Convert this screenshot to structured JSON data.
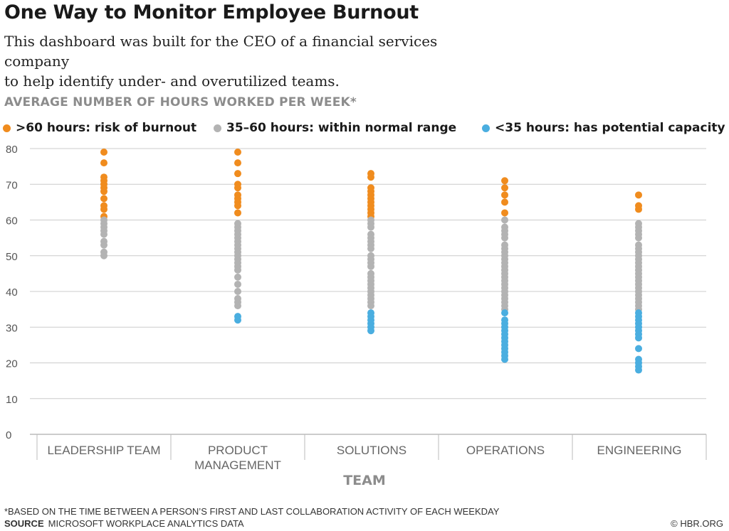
{
  "header": {
    "title": "One Way to Monitor Employee Burnout",
    "subtitle_line1": "This dashboard was built for the CEO of a financial services company",
    "subtitle_line2": "to help identify under- and overutilized teams."
  },
  "footer": {
    "footnote": "*BASED ON THE TIME BETWEEN A PERSON’S FIRST AND LAST COLLABORATION ACTIVITY OF EACH WEEKDAY",
    "source_label": "SOURCE",
    "source_text": "MICROSOFT WORKPLACE ANALYTICS DATA",
    "credit": "© HBR.ORG"
  },
  "colors": {
    "over": "#f08c1e",
    "normal": "#b3b3b3",
    "under": "#4aaee0",
    "grid": "#cccccc"
  },
  "chart_data": {
    "type": "scatter",
    "title": "",
    "ylabel": "AVERAGE NUMBER OF HOURS WORKED PER WEEK*",
    "xlabel": "TEAM",
    "ylim": [
      0,
      80
    ],
    "yticks": [
      0,
      10,
      20,
      30,
      40,
      50,
      60,
      70,
      80
    ],
    "grid": true,
    "legend_position": "top",
    "legend": [
      {
        "key": "over",
        "label": ">60 hours: risk of burnout"
      },
      {
        "key": "normal",
        "label": "35–60 hours: within normal range"
      },
      {
        "key": "under",
        "label": "<35 hours: has potential capacity"
      }
    ],
    "categories": [
      {
        "name": "LEADERSHIP TEAM",
        "lines": [
          "LEADERSHIP TEAM"
        ],
        "values": [
          79,
          76,
          72,
          71,
          70,
          69,
          68,
          66,
          64,
          63,
          61,
          60,
          59,
          58,
          57,
          56,
          54,
          53,
          51,
          50
        ]
      },
      {
        "name": "PRODUCT MANAGEMENT",
        "lines": [
          "PRODUCT",
          "MANAGEMENT"
        ],
        "values": [
          79,
          76,
          73,
          70,
          69,
          67,
          66,
          65,
          64,
          62,
          59,
          58,
          57,
          56,
          55,
          54,
          53,
          52,
          51,
          50,
          49,
          48,
          47,
          46,
          44,
          42,
          40,
          38,
          37,
          36,
          33,
          32
        ]
      },
      {
        "name": "SOLUTIONS",
        "lines": [
          "SOLUTIONS"
        ],
        "values": [
          73,
          72,
          69,
          68,
          67,
          66,
          65,
          64,
          63,
          62,
          61,
          60,
          59,
          58,
          56,
          55,
          54,
          53,
          52,
          50,
          49,
          48,
          47,
          45,
          44,
          43,
          42,
          41,
          40,
          39,
          38,
          37,
          36,
          34,
          33,
          32,
          31,
          30,
          29
        ]
      },
      {
        "name": "OPERATIONS",
        "lines": [
          "OPERATIONS"
        ],
        "values": [
          71,
          69,
          67,
          65,
          62,
          60,
          58,
          57,
          56,
          55,
          53,
          52,
          51,
          50,
          49,
          48,
          47,
          46,
          45,
          44,
          43,
          42,
          41,
          40,
          39,
          38,
          37,
          36,
          35,
          34,
          32,
          31,
          30,
          29,
          28,
          27,
          26,
          25,
          24,
          23,
          22,
          21
        ]
      },
      {
        "name": "ENGINEERING",
        "lines": [
          "ENGINEERING"
        ],
        "values": [
          67,
          64,
          63,
          59,
          58,
          57,
          56,
          55,
          53,
          52,
          51,
          50,
          49,
          48,
          47,
          46,
          45,
          44,
          43,
          42,
          41,
          40,
          39,
          38,
          37,
          36,
          35,
          34,
          33,
          32,
          31,
          30,
          29,
          28,
          27,
          24,
          21,
          20,
          19,
          18
        ]
      }
    ]
  }
}
